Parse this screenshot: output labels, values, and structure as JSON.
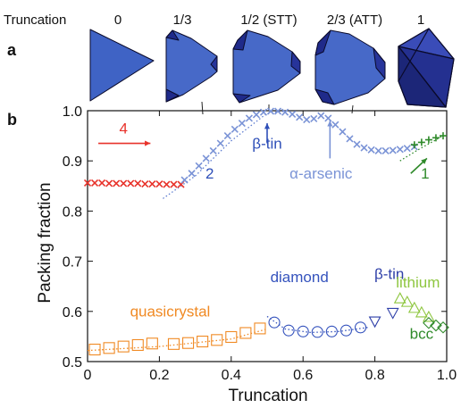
{
  "figure": {
    "top_row_label": "Truncation",
    "truncation_labels": [
      "0",
      "1/3",
      "1/2 (STT)",
      "2/3 (ATT)",
      "1"
    ],
    "panel_a": "a",
    "panel_b": "b"
  },
  "colors": {
    "red": "#e8322a",
    "blue_light": "#7a93d6",
    "blue_dark": "#2e3fa8",
    "green": "#2f8a2a",
    "green_light": "#8ec63f",
    "orange": "#f08a24",
    "poly_face": "#3f63c5",
    "poly_dark": "#1f2a8a",
    "poly_edge": "#0a0a2a"
  },
  "icons": [
    "tetrahedron-icon",
    "truncated-tetrahedron-icon",
    "truncated-tetrahedron-icon",
    "truncated-tetrahedron-icon",
    "octahedron-icon"
  ],
  "chart_data": {
    "type": "scatter",
    "xlabel": "Truncation",
    "ylabel": "Packing fraction",
    "xlim": [
      0,
      1.0
    ],
    "ylim": [
      0.5,
      1.0
    ],
    "xticks": [
      0,
      0.2,
      0.4,
      0.6,
      0.8,
      1.0
    ],
    "xtick_labels": [
      "0",
      "0.2",
      "0.4",
      "0.6",
      "0.8",
      "1.0"
    ],
    "yticks": [
      0.5,
      0.6,
      0.7,
      0.8,
      0.9,
      1.0
    ],
    "ytick_labels": [
      "0.5",
      "0.6",
      "0.7",
      "0.8",
      "0.9",
      "1.0"
    ],
    "grid": false,
    "series": [
      {
        "marker": "x",
        "color": "#e8322a",
        "x": [
          0.0,
          0.02,
          0.04,
          0.06,
          0.08,
          0.1,
          0.12,
          0.14,
          0.16,
          0.18,
          0.2,
          0.22,
          0.24,
          0.26
        ],
        "y": [
          0.856,
          0.856,
          0.856,
          0.855,
          0.855,
          0.855,
          0.855,
          0.855,
          0.854,
          0.854,
          0.854,
          0.853,
          0.853,
          0.853
        ]
      },
      {
        "marker": "x",
        "color": "#7a93d6",
        "x": [
          0.27,
          0.29,
          0.31,
          0.33,
          0.35,
          0.37,
          0.39,
          0.41,
          0.43,
          0.45,
          0.47,
          0.49,
          0.51,
          0.53,
          0.55,
          0.57,
          0.59,
          0.61,
          0.63,
          0.65,
          0.67,
          0.69,
          0.71,
          0.73,
          0.75,
          0.77,
          0.79,
          0.81,
          0.83,
          0.85,
          0.87,
          0.89,
          0.91
        ],
        "y": [
          0.862,
          0.875,
          0.89,
          0.905,
          0.92,
          0.935,
          0.95,
          0.963,
          0.975,
          0.985,
          0.992,
          0.997,
          0.999,
          0.999,
          0.997,
          0.993,
          0.987,
          0.982,
          0.984,
          0.99,
          0.985,
          0.972,
          0.958,
          0.944,
          0.933,
          0.926,
          0.922,
          0.92,
          0.92,
          0.921,
          0.923,
          0.925,
          0.928
        ]
      },
      {
        "marker": "+",
        "color": "#2f8a2a",
        "x": [
          0.91,
          0.93,
          0.95,
          0.97,
          0.99
        ],
        "y": [
          0.932,
          0.937,
          0.942,
          0.946,
          0.95
        ]
      },
      {
        "marker": "square",
        "color": "#f08a24",
        "x": [
          0.02,
          0.06,
          0.1,
          0.14,
          0.18,
          0.24,
          0.28,
          0.32,
          0.36,
          0.4,
          0.44,
          0.48
        ],
        "y": [
          0.524,
          0.527,
          0.53,
          0.533,
          0.536,
          0.535,
          0.537,
          0.54,
          0.543,
          0.549,
          0.557,
          0.566
        ]
      },
      {
        "marker": "circle",
        "color": "#3553bd",
        "x": [
          0.52,
          0.56,
          0.6,
          0.64,
          0.68,
          0.72,
          0.76
        ],
        "y": [
          0.578,
          0.562,
          0.56,
          0.559,
          0.56,
          0.562,
          0.568
        ]
      },
      {
        "marker": "triangle-down",
        "color": "#2e3fa8",
        "x": [
          0.8,
          0.85
        ],
        "y": [
          0.58,
          0.597
        ]
      },
      {
        "marker": "triangle-up",
        "color": "#8ec63f",
        "x": [
          0.87,
          0.89,
          0.91,
          0.93,
          0.95
        ],
        "y": [
          0.626,
          0.619,
          0.607,
          0.598,
          0.589
        ]
      },
      {
        "marker": "diamond",
        "color": "#2f8a2a",
        "x": [
          0.95,
          0.97,
          0.99
        ],
        "y": [
          0.577,
          0.572,
          0.568
        ]
      }
    ],
    "fit_lines": [
      {
        "color": "#5c7bd0",
        "x": [
          0.21,
          0.3,
          0.4,
          0.5,
          0.56
        ],
        "y": [
          0.825,
          0.87,
          0.94,
          0.995,
          1.0
        ]
      },
      {
        "color": "#2f8a2a",
        "x": [
          0.87,
          0.92,
          0.99
        ],
        "y": [
          0.9,
          0.922,
          0.95
        ]
      },
      {
        "color": "#f08a24",
        "x": [
          0.0,
          0.2,
          0.4,
          0.5
        ],
        "y": [
          0.522,
          0.53,
          0.545,
          0.565
        ]
      },
      {
        "color": "#3553bd",
        "x": [
          0.5,
          0.55,
          0.62,
          0.7,
          0.78
        ],
        "y": [
          0.59,
          0.565,
          0.558,
          0.56,
          0.568
        ]
      }
    ],
    "annotations": [
      {
        "text": "4",
        "color": "#e8322a",
        "x": 0.1,
        "y": 0.955
      },
      {
        "text": "2",
        "color": "#2e4fb8",
        "x": 0.34,
        "y": 0.865
      },
      {
        "text": "β-tin",
        "color": "#2e4fb8",
        "x": 0.5,
        "y": 0.924
      },
      {
        "text": "α-arsenic",
        "color": "#7a93d6",
        "x": 0.65,
        "y": 0.865
      },
      {
        "text": "1",
        "color": "#2f8a2a",
        "x": 0.94,
        "y": 0.865
      },
      {
        "text": "quasicrystal",
        "color": "#f08a24",
        "x": 0.23,
        "y": 0.59
      },
      {
        "text": "diamond",
        "color": "#3553bd",
        "x": 0.59,
        "y": 0.658
      },
      {
        "text": "β-tin",
        "color": "#2e3fa8",
        "x": 0.84,
        "y": 0.665
      },
      {
        "text": "lithium",
        "color": "#8ec63f",
        "x": 0.92,
        "y": 0.648
      },
      {
        "text": "bcc",
        "color": "#2f8a2a",
        "x": 0.93,
        "y": 0.545
      }
    ]
  }
}
